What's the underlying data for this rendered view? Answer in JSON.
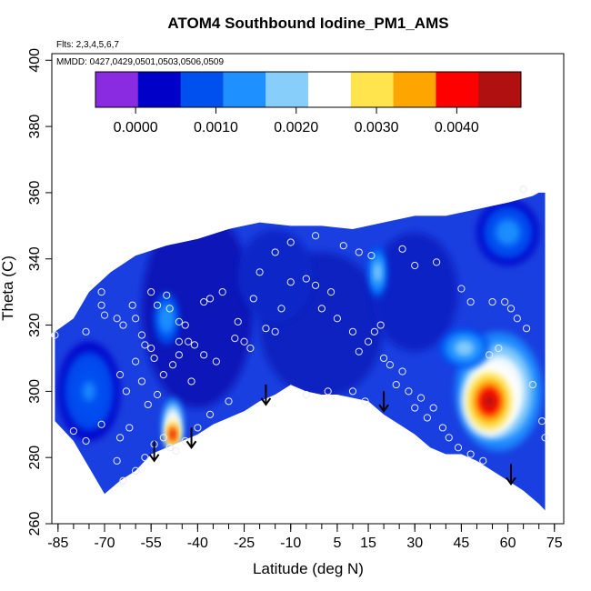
{
  "chart_data": {
    "type": "heatmap",
    "title": "ATOM4 Southbound Iodine_PM1_AMS",
    "flights_label": "Flts: 2,3,4,5,6,7",
    "mmdd_label": "MMDD: 0427,0429,0501,0503,0506,0509",
    "xlabel": "Latitude (deg N)",
    "ylabel": "Theta (C)",
    "xlim": [
      -87,
      78
    ],
    "ylim": [
      260,
      402
    ],
    "x_ticks": [
      "-85",
      "-70",
      "-55",
      "-40",
      "-25",
      "-10",
      "5",
      "15",
      "30",
      "45",
      "60",
      "75"
    ],
    "x_tick_values": [
      -85,
      -70,
      -55,
      -40,
      -25,
      -10,
      5,
      15,
      30,
      45,
      60,
      75
    ],
    "y_ticks": [
      "260",
      "280",
      "300",
      "320",
      "340",
      "360",
      "380",
      "400"
    ],
    "y_tick_values": [
      260,
      280,
      300,
      320,
      340,
      360,
      380,
      400
    ],
    "colorbar": {
      "min": -0.0005,
      "max": 0.0048,
      "tick_labels": [
        "0.0000",
        "0.0010",
        "0.0020",
        "0.0030",
        "0.0040"
      ],
      "tick_values": [
        0.0,
        0.001,
        0.002,
        0.003,
        0.004
      ],
      "colors": [
        "#8a2be2",
        "#0000c8",
        "#0050f0",
        "#1e90ff",
        "#87cefa",
        "#ffffff",
        "#ffe44d",
        "#ffa500",
        "#ff0000",
        "#b01010"
      ]
    },
    "upper_boundary": [
      [
        -86,
        318
      ],
      [
        -80,
        322
      ],
      [
        -75,
        330
      ],
      [
        -68,
        336
      ],
      [
        -60,
        341
      ],
      [
        -50,
        344
      ],
      [
        -40,
        346
      ],
      [
        -30,
        349
      ],
      [
        -20,
        351
      ],
      [
        -10,
        350
      ],
      [
        0,
        350
      ],
      [
        10,
        349
      ],
      [
        20,
        351
      ],
      [
        30,
        353
      ],
      [
        40,
        353
      ],
      [
        50,
        355
      ],
      [
        60,
        357
      ],
      [
        68,
        359
      ],
      [
        70,
        360
      ]
    ],
    "lower_boundary": [
      [
        -86,
        291
      ],
      [
        -80,
        285
      ],
      [
        -75,
        277
      ],
      [
        -70,
        269
      ],
      [
        -65,
        273
      ],
      [
        -60,
        276
      ],
      [
        -55,
        281
      ],
      [
        -50,
        283
      ],
      [
        -45,
        285
      ],
      [
        -40,
        287
      ],
      [
        -35,
        290
      ],
      [
        -30,
        292
      ],
      [
        -25,
        294
      ],
      [
        -20,
        297
      ],
      [
        -15,
        299
      ],
      [
        -10,
        302
      ],
      [
        -5,
        300
      ],
      [
        0,
        299
      ],
      [
        5,
        299
      ],
      [
        10,
        298
      ],
      [
        15,
        297
      ],
      [
        20,
        293
      ],
      [
        25,
        290
      ],
      [
        30,
        287
      ],
      [
        35,
        283
      ],
      [
        40,
        281
      ],
      [
        45,
        281
      ],
      [
        50,
        279
      ],
      [
        55,
        276
      ],
      [
        60,
        273
      ],
      [
        65,
        270
      ],
      [
        70,
        266
      ],
      [
        72,
        264
      ]
    ],
    "hotspots": [
      {
        "lat": 54,
        "theta": 297,
        "value": 0.0045,
        "rx": 9,
        "ry": 11
      },
      {
        "lat": 57,
        "theta": 300,
        "value": 0.003,
        "rx": 14,
        "ry": 18
      },
      {
        "lat": -48,
        "theta": 287,
        "value": 0.0046,
        "rx": 2.5,
        "ry": 5
      },
      {
        "lat": -48,
        "theta": 290,
        "value": 0.003,
        "rx": 3.5,
        "ry": 8
      },
      {
        "lat": 46,
        "theta": 313,
        "value": 0.0019,
        "rx": 8,
        "ry": 6
      },
      {
        "lat": 18,
        "theta": 336,
        "value": 0.0019,
        "rx": 3,
        "ry": 8
      },
      {
        "lat": -50,
        "theta": 322,
        "value": 0.0016,
        "rx": 4,
        "ry": 8
      },
      {
        "lat": 60,
        "theta": 348,
        "value": 0.0014,
        "rx": 10,
        "ry": 10
      },
      {
        "lat": -75,
        "theta": 300,
        "value": 0.0012,
        "rx": 10,
        "ry": 15
      }
    ],
    "arrows": [
      {
        "lat": -54,
        "theta": 279
      },
      {
        "lat": -42,
        "theta": 283
      },
      {
        "lat": -18,
        "theta": 296
      },
      {
        "lat": 20,
        "theta": 294
      },
      {
        "lat": 61,
        "theta": 272
      }
    ],
    "points": [
      [
        -86,
        317
      ],
      [
        -76,
        318
      ],
      [
        -71,
        330
      ],
      [
        -71,
        326
      ],
      [
        -70,
        323
      ],
      [
        -66,
        322
      ],
      [
        -64,
        320
      ],
      [
        -61,
        326
      ],
      [
        -60,
        322
      ],
      [
        -58,
        317
      ],
      [
        -57,
        314
      ],
      [
        -55,
        313
      ],
      [
        -54,
        310
      ],
      [
        -55,
        330
      ],
      [
        -53,
        326
      ],
      [
        -50,
        329
      ],
      [
        -49,
        325
      ],
      [
        -46,
        321
      ],
      [
        -46,
        315
      ],
      [
        -44,
        320
      ],
      [
        -43,
        315
      ],
      [
        -41,
        314
      ],
      [
        -38,
        327
      ],
      [
        -36,
        328
      ],
      [
        -32,
        330
      ],
      [
        -27,
        321
      ],
      [
        -28,
        316
      ],
      [
        -25,
        315
      ],
      [
        -23,
        313
      ],
      [
        -18,
        319
      ],
      [
        -15,
        318
      ],
      [
        -13,
        325
      ],
      [
        -10,
        333
      ],
      [
        -5,
        334
      ],
      [
        -2,
        332
      ],
      [
        0,
        325
      ],
      [
        3,
        330
      ],
      [
        5,
        322
      ],
      [
        10,
        318
      ],
      [
        12,
        312
      ],
      [
        15,
        315
      ],
      [
        17,
        318
      ],
      [
        19,
        320
      ],
      [
        20,
        310
      ],
      [
        22,
        308
      ],
      [
        24,
        302
      ],
      [
        26,
        306
      ],
      [
        28,
        300
      ],
      [
        30,
        295
      ],
      [
        32,
        298
      ],
      [
        34,
        292
      ],
      [
        36,
        295
      ],
      [
        39,
        289
      ],
      [
        41,
        286
      ],
      [
        44,
        283
      ],
      [
        48,
        281
      ],
      [
        52,
        279
      ],
      [
        54,
        311
      ],
      [
        57,
        313
      ],
      [
        59,
        327
      ],
      [
        61,
        325
      ],
      [
        63,
        322
      ],
      [
        66,
        319
      ],
      [
        68,
        302
      ],
      [
        71,
        291
      ],
      [
        72,
        286
      ],
      [
        -65,
        286
      ],
      [
        -62,
        289
      ],
      [
        -66,
        279
      ],
      [
        -64,
        273
      ],
      [
        -60,
        276
      ],
      [
        -57,
        280
      ],
      [
        -54,
        284
      ],
      [
        -51,
        286
      ],
      [
        -49,
        283
      ],
      [
        -47,
        282
      ],
      [
        -44,
        285
      ],
      [
        -40,
        289
      ],
      [
        -36,
        293
      ],
      [
        -30,
        297
      ],
      [
        -63,
        300
      ],
      [
        -65,
        305
      ],
      [
        -60,
        309
      ],
      [
        -58,
        303
      ],
      [
        -56,
        296
      ],
      [
        -53,
        299
      ],
      [
        -51,
        305
      ],
      [
        -48,
        308
      ],
      [
        -46,
        311
      ],
      [
        -42,
        303
      ],
      [
        -38,
        311
      ],
      [
        -34,
        309
      ],
      [
        -22,
        328
      ],
      [
        -20,
        336
      ],
      [
        -15,
        342
      ],
      [
        -10,
        345
      ],
      [
        -2,
        347
      ],
      [
        7,
        344
      ],
      [
        12,
        342
      ],
      [
        16,
        341
      ],
      [
        26,
        343
      ],
      [
        30,
        338
      ],
      [
        37,
        339
      ],
      [
        45,
        331
      ],
      [
        48,
        327
      ],
      [
        55,
        327
      ],
      [
        65,
        361
      ],
      [
        -5,
        299
      ],
      [
        2,
        300
      ],
      [
        10,
        300
      ],
      [
        14,
        297
      ],
      [
        -80,
        288
      ],
      [
        -76,
        285
      ],
      [
        -71,
        290
      ]
    ]
  }
}
